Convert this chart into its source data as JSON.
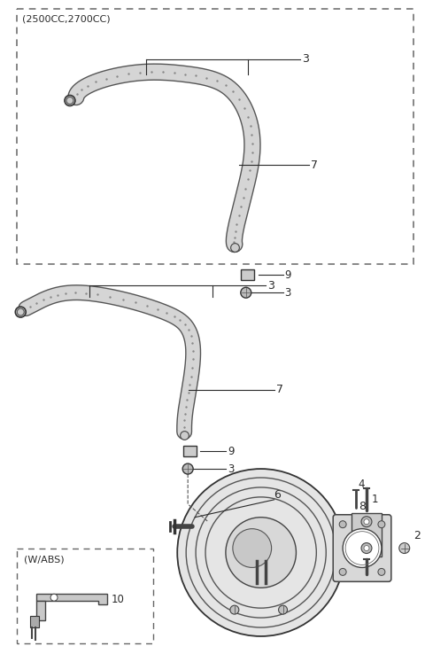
{
  "bg_color": "#ffffff",
  "line_color": "#2a2a2a",
  "box1_label": "(2500CC,2700CC)",
  "box2_label": "(W/ABS)",
  "hose_fill": "#d8d8d8",
  "hose_edge": "#555555",
  "hose_dot": "#888888"
}
